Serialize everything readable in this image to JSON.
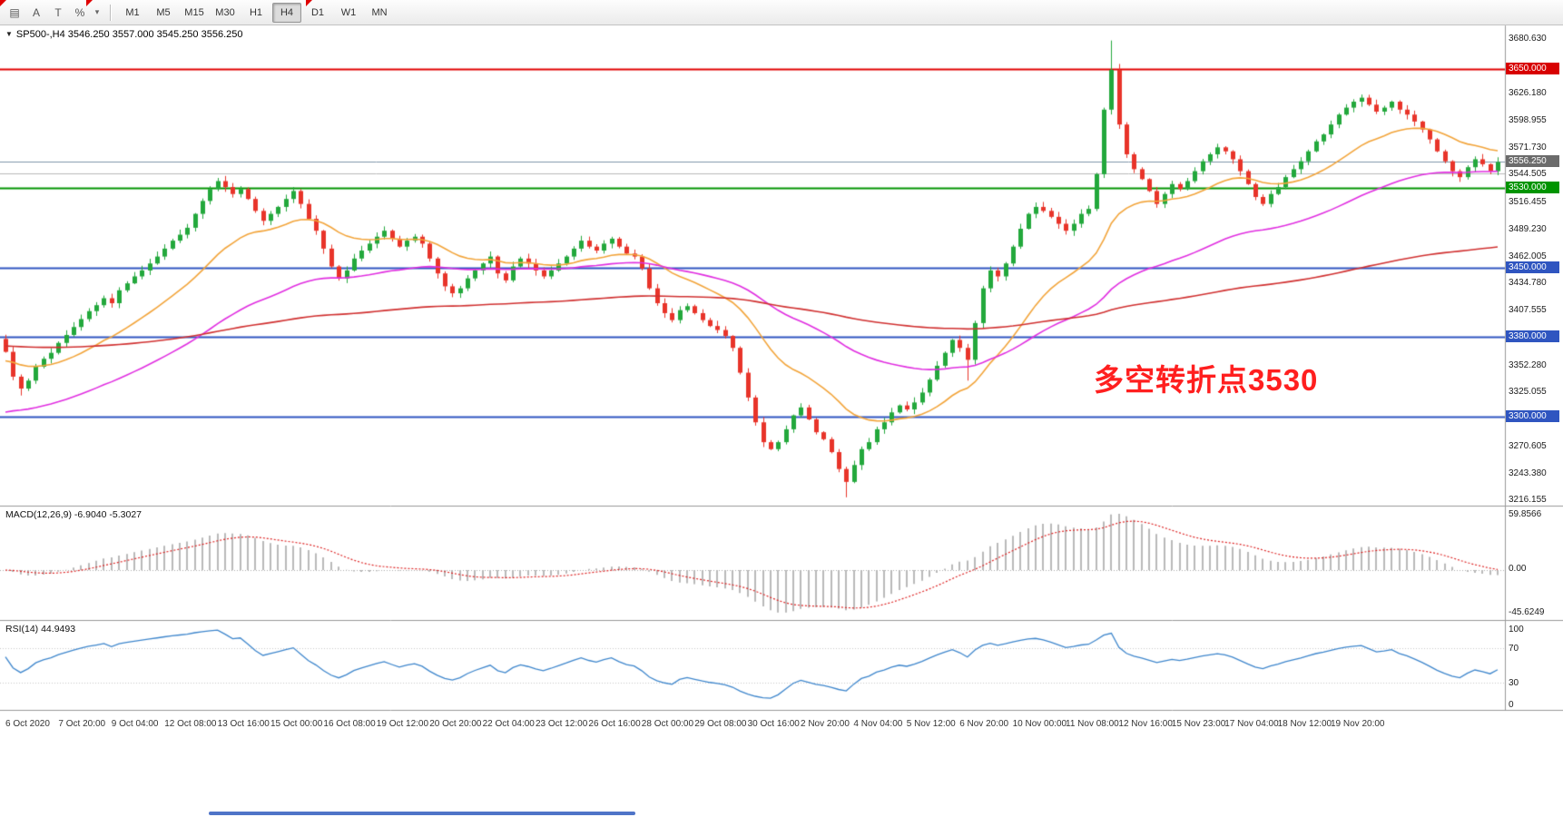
{
  "toolbar": {
    "left_icons": [
      {
        "name": "chart-grid-icon",
        "glyph": "▤"
      },
      {
        "name": "cursor-a-icon",
        "glyph": "A"
      },
      {
        "name": "text-tool-icon",
        "glyph": "T"
      },
      {
        "name": "percent-tool-icon",
        "glyph": "%"
      },
      {
        "name": "dropdown-caret-icon",
        "glyph": "▾"
      }
    ],
    "timeframes": [
      "M1",
      "M5",
      "M15",
      "M30",
      "H1",
      "H4",
      "D1",
      "W1",
      "MN"
    ],
    "active": "H4"
  },
  "chart": {
    "symbol_line": "SP500-,H4 3546.250 3557.000 3545.250 3556.250",
    "annotation": {
      "text": "多空转折点3530",
      "color": "#ff1f1f"
    },
    "price_axis": {
      "ticks": [
        "3680.630",
        "3626.180",
        "3598.955",
        "3571.730",
        "3544.505",
        "3516.455",
        "3489.230",
        "3462.005",
        "3434.780",
        "3407.555",
        "3352.280",
        "3325.055",
        "3270.605",
        "3243.380",
        "3216.155"
      ],
      "tags": [
        {
          "label": "3650.000",
          "price": 3650.0,
          "color": "#d80000"
        },
        {
          "label": "3556.250",
          "price": 3556.25,
          "color": "#6b6b6b"
        },
        {
          "label": "3530.000",
          "price": 3530.0,
          "color": "#009400"
        },
        {
          "label": "3450.000",
          "price": 3450.0,
          "color": "#2f55c0"
        },
        {
          "label": "3380.000",
          "price": 3380.0,
          "color": "#2f55c0"
        },
        {
          "label": "3300.000",
          "price": 3300.0,
          "color": "#2f55c0"
        }
      ]
    }
  },
  "macd": {
    "label": "MACD(12,26,9) -6.9040 -5.3027",
    "axis_labels": [
      "59.8566",
      "0.00",
      "-45.6249"
    ]
  },
  "rsi": {
    "label": "RSI(14) 44.9493",
    "axis_labels": [
      "100",
      "70",
      "30",
      "0"
    ]
  },
  "time_axis": [
    "6 Oct 2020",
    "7 Oct 20:00",
    "9 Oct 04:00",
    "12 Oct 08:00",
    "13 Oct 16:00",
    "15 Oct 00:00",
    "16 Oct 08:00",
    "19 Oct 12:00",
    "20 Oct 20:00",
    "22 Oct 04:00",
    "23 Oct 12:00",
    "26 Oct 16:00",
    "28 Oct 00:00",
    "29 Oct 08:00",
    "30 Oct 16:00",
    "2 Nov 20:00",
    "4 Nov 04:00",
    "5 Nov 12:00",
    "6 Nov 20:00",
    "10 Nov 00:00",
    "11 Nov 08:00",
    "12 Nov 16:00",
    "15 Nov 23:00",
    "17 Nov 04:00",
    "18 Nov 12:00",
    "19 Nov 20:00"
  ],
  "window": {
    "scrollbar_color": "#4f74c8"
  },
  "chart_data": {
    "type": "candlestick",
    "symbol": "SP500-",
    "timeframe": "H4",
    "current_bar": {
      "open": 3546.25,
      "high": 3557.0,
      "low": 3545.25,
      "close": 3556.25
    },
    "y_range": [
      3211,
      3692
    ],
    "first_open": 3378,
    "closes": [
      3365,
      3340,
      3328,
      3336,
      3350,
      3358,
      3364,
      3374,
      3382,
      3390,
      3398,
      3406,
      3412,
      3419,
      3414,
      3427,
      3434,
      3441,
      3447,
      3454,
      3461,
      3469,
      3477,
      3483,
      3490,
      3504,
      3517,
      3529,
      3537,
      3531,
      3524,
      3529,
      3519,
      3507,
      3497,
      3504,
      3511,
      3519,
      3527,
      3514,
      3499,
      3487,
      3469,
      3451,
      3439,
      3447,
      3459,
      3467,
      3474,
      3481,
      3487,
      3479,
      3471,
      3477,
      3481,
      3474,
      3459,
      3444,
      3431,
      3424,
      3429,
      3439,
      3447,
      3454,
      3461,
      3444,
      3437,
      3451,
      3459,
      3454,
      3447,
      3441,
      3447,
      3454,
      3461,
      3469,
      3477,
      3471,
      3467,
      3474,
      3479,
      3471,
      3464,
      3461,
      3449,
      3429,
      3414,
      3404,
      3397,
      3407,
      3411,
      3404,
      3397,
      3391,
      3387,
      3381,
      3369,
      3344,
      3319,
      3294,
      3274,
      3267,
      3274,
      3287,
      3301,
      3309,
      3297,
      3284,
      3277,
      3264,
      3247,
      3234,
      3251,
      3267,
      3274,
      3287,
      3294,
      3304,
      3311,
      3307,
      3314,
      3324,
      3337,
      3351,
      3364,
      3377,
      3369,
      3357,
      3394,
      3429,
      3447,
      3441,
      3454,
      3471,
      3489,
      3504,
      3511,
      3507,
      3501,
      3494,
      3487,
      3494,
      3504,
      3509,
      3544,
      3609,
      3649,
      3594,
      3564,
      3549,
      3539,
      3527,
      3514,
      3524,
      3534,
      3529,
      3537,
      3547,
      3557,
      3564,
      3571,
      3567,
      3559,
      3547,
      3534,
      3521,
      3514,
      3524,
      3531,
      3541,
      3549,
      3557,
      3567,
      3577,
      3584,
      3594,
      3604,
      3611,
      3617,
      3621,
      3614,
      3607,
      3611,
      3617,
      3609,
      3604,
      3597,
      3589,
      3579,
      3567,
      3557,
      3547,
      3541,
      3551,
      3559,
      3554,
      3547,
      3556.25
    ],
    "high_overrides": {
      "146": 3678.6,
      "147": 3655.0
    },
    "low_overrides": {
      "2": 3321.0,
      "111": 3218.5,
      "127": 3336.0
    },
    "colors": {
      "bull": "#23a83c",
      "bear": "#e8342a"
    },
    "hlines": [
      {
        "price": 3650.0,
        "color": "#e00000",
        "width": 2
      },
      {
        "price": 3530.0,
        "color": "#009400",
        "width": 2
      },
      {
        "price": 3450.0,
        "color": "#2f55c0",
        "width": 2
      },
      {
        "price": 3380.0,
        "color": "#2f55c0",
        "width": 2
      },
      {
        "price": 3300.0,
        "color": "#2f55c0",
        "width": 2
      },
      {
        "price": 3556.25,
        "color": "#7f96aa",
        "width": 1
      },
      {
        "price": 3544.5,
        "color": "#b8b8b8",
        "width": 1
      }
    ],
    "moving_averages": [
      {
        "period": 20,
        "color": "#f2a43a",
        "seed": 3355
      },
      {
        "period": 55,
        "color": "#e02ee0",
        "seed": 3302
      },
      {
        "period": 200,
        "color": "#d03030",
        "seed": 3371
      }
    ],
    "macd": {
      "fast": 12,
      "slow": 26,
      "signal": 9,
      "value": -6.904,
      "signal_value": -5.3027,
      "axis_max": 59.8566,
      "axis_min": -45.6249
    },
    "rsi": {
      "period": 14,
      "value": 44.9493,
      "levels": [
        70,
        30
      ]
    }
  }
}
